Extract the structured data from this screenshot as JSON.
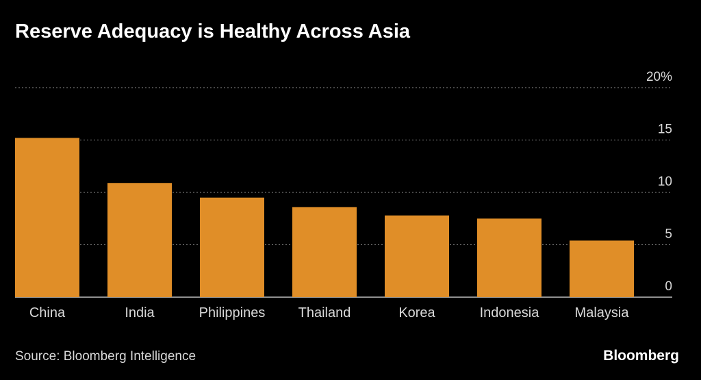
{
  "title": "Reserve Adequacy is Healthy Across Asia",
  "source": "Source: Bloomberg Intelligence",
  "brand": "Bloomberg",
  "colors": {
    "bar": "#E08E28",
    "grid": "#8c8c8c",
    "tick": "#d9d9d9",
    "background": "#000000"
  },
  "chart_data": {
    "type": "bar",
    "categories": [
      "China",
      "India",
      "Philippines",
      "Thailand",
      "Korea",
      "Indonesia",
      "Malaysia"
    ],
    "values": [
      15.2,
      10.9,
      9.5,
      8.6,
      7.8,
      7.5,
      5.4
    ],
    "ylim": [
      0,
      20
    ],
    "y_ticks": [
      0,
      5,
      10,
      15,
      20
    ],
    "y_tick_labels": [
      "0",
      "5",
      "10",
      "15",
      "20%"
    ],
    "grid": true,
    "y_axis_position": "right"
  }
}
